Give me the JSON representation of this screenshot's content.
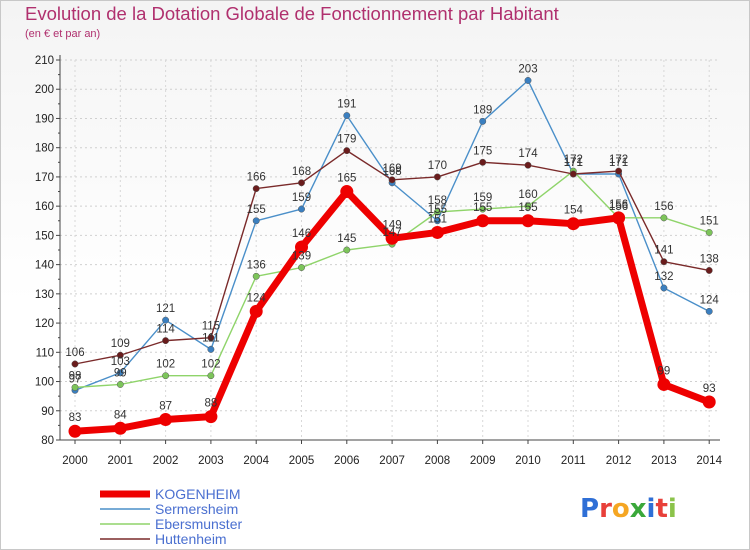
{
  "chart_data": {
    "type": "line",
    "title": "Evolution de la Dotation Globale de Fonctionnement par Habitant",
    "subtitle": "(en € et par an)",
    "xlabel": "",
    "ylabel": "",
    "ylim": [
      80,
      210
    ],
    "ytick_step": 10,
    "grid": true,
    "legend_position": "bottom-left",
    "categories": [
      "2000",
      "2001",
      "2002",
      "2003",
      "2004",
      "2005",
      "2006",
      "2007",
      "2008",
      "2009",
      "2010",
      "2011",
      "2012",
      "2013",
      "2014"
    ],
    "series": [
      {
        "name": "Sermersheim",
        "color": "#4a8fc9",
        "marker": "#3a7fc0",
        "values": [
          97,
          103,
          121,
          111,
          155,
          159,
          191,
          168,
          155,
          189,
          203,
          171,
          171,
          132,
          124
        ]
      },
      {
        "name": "Ebersmunster",
        "color": "#8fd46a",
        "marker": "#7cc45a",
        "values": [
          98,
          99,
          102,
          102,
          136,
          139,
          145,
          147,
          158,
          159,
          160,
          172,
          156,
          156,
          151
        ]
      },
      {
        "name": "Huttenheim",
        "color": "#7a2a2a",
        "marker": "#6a1c1c",
        "values": [
          106,
          109,
          114,
          115,
          166,
          168,
          179,
          169,
          170,
          175,
          174,
          171,
          172,
          141,
          138
        ]
      },
      {
        "name": "KOGENHEIM",
        "color": "#ee0000",
        "marker": "#ee0000",
        "values": [
          83,
          84,
          87,
          88,
          124,
          146,
          165,
          149,
          151,
          155,
          155,
          154,
          156,
          99,
          93
        ]
      }
    ],
    "legend": [
      "KOGENHEIM",
      "Sermersheim",
      "Ebersmunster",
      "Huttenheim"
    ]
  },
  "logo": {
    "text": "Proxiti",
    "letters": [
      "P",
      "r",
      "o",
      "x",
      "i",
      "t",
      "i"
    ],
    "colors": [
      "#2f6fd6",
      "#e8403a",
      "#f5a623",
      "#3aa83a",
      "#2f6fd6",
      "#e8403a",
      "#8bc34a"
    ]
  }
}
